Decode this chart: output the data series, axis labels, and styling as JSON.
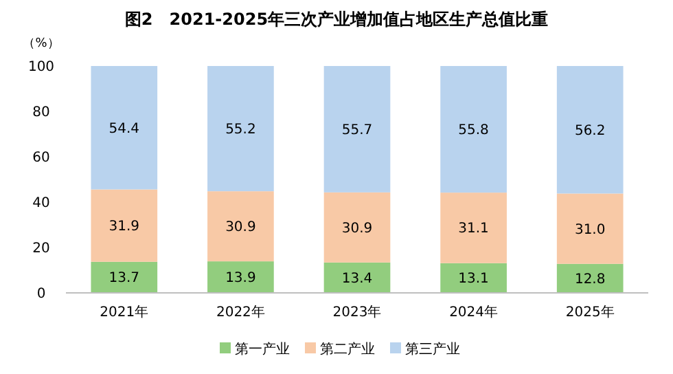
{
  "chart_data": {
    "type": "bar",
    "title": "图2　2021-2025年三次产业增加值占地区生产总值比重",
    "ylabel": "（%）",
    "categories": [
      "2021年",
      "2022年",
      "2023年",
      "2024年",
      "2025年"
    ],
    "series": [
      {
        "name": "第一产业",
        "color": "#92cd7e",
        "values": [
          13.7,
          13.9,
          13.4,
          13.1,
          12.8
        ]
      },
      {
        "name": "第二产业",
        "color": "#f8c9a6",
        "values": [
          31.9,
          30.9,
          30.9,
          31.1,
          31.0
        ],
        "value_labels": [
          "31.9",
          "30.9",
          "30.9",
          "31.1",
          "31.0"
        ]
      },
      {
        "name": "第三产业",
        "color": "#b9d3ee",
        "values": [
          54.4,
          55.2,
          55.7,
          55.8,
          56.2
        ]
      }
    ],
    "stacked": true,
    "data_labels": true,
    "ylim": [
      0,
      100
    ],
    "yticks": [
      0,
      20,
      40,
      60,
      80,
      100
    ],
    "legend": "bottom"
  }
}
